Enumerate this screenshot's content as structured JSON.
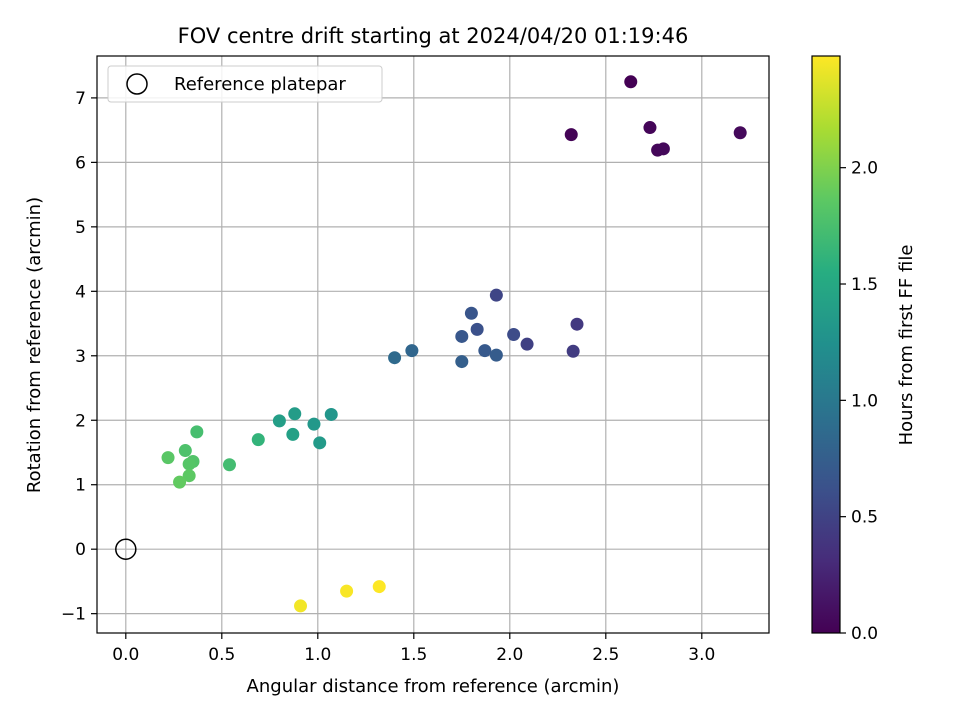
{
  "chart_data": {
    "type": "scatter",
    "title": "FOV centre drift starting at 2024/04/20 01:19:46",
    "xlabel": "Angular distance from reference (arcmin)",
    "ylabel": "Rotation from reference (arcmin)",
    "xlim": [
      -0.15,
      3.35
    ],
    "ylim": [
      -1.3,
      7.65
    ],
    "xticks": [
      0.0,
      0.5,
      1.0,
      1.5,
      2.0,
      2.5,
      3.0
    ],
    "xtick_labels": [
      "0.0",
      "0.5",
      "1.0",
      "1.5",
      "2.0",
      "2.5",
      "3.0"
    ],
    "yticks": [
      -1,
      0,
      1,
      2,
      3,
      4,
      5,
      6,
      7
    ],
    "ytick_labels": [
      "−1",
      "0",
      "1",
      "2",
      "3",
      "4",
      "5",
      "6",
      "7"
    ],
    "grid": true,
    "legend": {
      "placement": "upper-left",
      "entries": [
        {
          "label": "Reference platepar",
          "marker": "open-circle"
        }
      ]
    },
    "reference_point": {
      "x": 0.0,
      "y": 0.0
    },
    "colorbar": {
      "label": "Hours from first FF file",
      "colormap": "viridis",
      "range": [
        0.0,
        2.48
      ],
      "ticks": [
        0.0,
        0.5,
        1.0,
        1.5,
        2.0
      ],
      "tick_labels": [
        "0.0",
        "0.5",
        "1.0",
        "1.5",
        "2.0"
      ]
    },
    "series": [
      {
        "points": [
          {
            "x": 2.63,
            "y": 7.25,
            "c": 0.0
          },
          {
            "x": 2.32,
            "y": 6.43,
            "c": 0.02
          },
          {
            "x": 2.73,
            "y": 6.54,
            "c": 0.03
          },
          {
            "x": 2.77,
            "y": 6.19,
            "c": 0.04
          },
          {
            "x": 2.8,
            "y": 6.21,
            "c": 0.05
          },
          {
            "x": 3.2,
            "y": 6.46,
            "c": 0.06
          },
          {
            "x": 2.35,
            "y": 3.49,
            "c": 0.42
          },
          {
            "x": 2.33,
            "y": 3.07,
            "c": 0.44
          },
          {
            "x": 2.09,
            "y": 3.18,
            "c": 0.48
          },
          {
            "x": 1.93,
            "y": 3.94,
            "c": 0.52
          },
          {
            "x": 2.02,
            "y": 3.33,
            "c": 0.58
          },
          {
            "x": 1.83,
            "y": 3.41,
            "c": 0.62
          },
          {
            "x": 1.8,
            "y": 3.66,
            "c": 0.66
          },
          {
            "x": 1.75,
            "y": 3.3,
            "c": 0.68
          },
          {
            "x": 1.87,
            "y": 3.08,
            "c": 0.7
          },
          {
            "x": 1.93,
            "y": 3.01,
            "c": 0.73
          },
          {
            "x": 1.75,
            "y": 2.91,
            "c": 0.76
          },
          {
            "x": 1.49,
            "y": 3.08,
            "c": 0.82
          },
          {
            "x": 1.4,
            "y": 2.97,
            "c": 0.86
          },
          {
            "x": 1.07,
            "y": 2.09,
            "c": 1.3
          },
          {
            "x": 0.98,
            "y": 1.94,
            "c": 1.33
          },
          {
            "x": 1.01,
            "y": 1.65,
            "c": 1.35
          },
          {
            "x": 0.88,
            "y": 2.1,
            "c": 1.37
          },
          {
            "x": 0.8,
            "y": 1.99,
            "c": 1.39
          },
          {
            "x": 0.87,
            "y": 1.78,
            "c": 1.41
          },
          {
            "x": 0.69,
            "y": 1.7,
            "c": 1.62
          },
          {
            "x": 0.54,
            "y": 1.31,
            "c": 1.72
          },
          {
            "x": 0.37,
            "y": 1.82,
            "c": 1.74
          },
          {
            "x": 0.31,
            "y": 1.53,
            "c": 1.78
          },
          {
            "x": 0.35,
            "y": 1.36,
            "c": 1.8
          },
          {
            "x": 0.33,
            "y": 1.32,
            "c": 1.82
          },
          {
            "x": 0.22,
            "y": 1.42,
            "c": 1.84
          },
          {
            "x": 0.33,
            "y": 1.14,
            "c": 1.86
          },
          {
            "x": 0.28,
            "y": 1.04,
            "c": 1.88
          },
          {
            "x": 0.91,
            "y": -0.88,
            "c": 2.44
          },
          {
            "x": 1.15,
            "y": -0.65,
            "c": 2.46
          },
          {
            "x": 1.32,
            "y": -0.58,
            "c": 2.48
          }
        ]
      }
    ]
  }
}
